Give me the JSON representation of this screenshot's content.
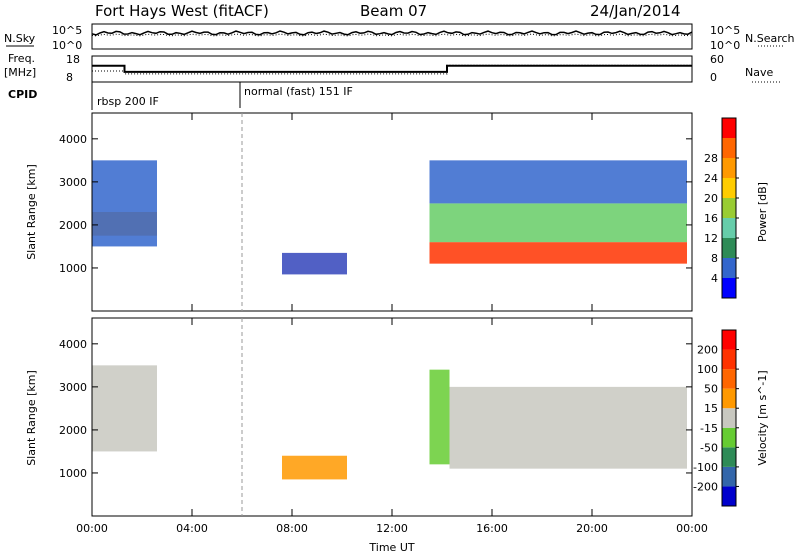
{
  "header": {
    "title": "Fort Hays West (fitACF)",
    "beam": "Beam 07",
    "date": "24/Jan/2014"
  },
  "strip": {
    "nsky_label": "N.Sky",
    "nsearch_label": "N.Search",
    "freq_label": "Freq.",
    "freq_unit": "[MHz]",
    "nave_label": "Nave",
    "cpid_label": "CPID",
    "nsky_ticks": [
      "10^5",
      "10^0"
    ],
    "nsearch_ticks": [
      "10^5",
      "10^0"
    ],
    "freq_ticks": [
      "18",
      "8"
    ],
    "nave_ticks": [
      "60",
      "0"
    ],
    "cpid_segments": [
      {
        "start_h": 0,
        "end_h": 6,
        "label": "rbsp 200 IF"
      },
      {
        "start_h": 6,
        "end_h": 24,
        "label": "normal (fast) 151 IF"
      }
    ],
    "freq_series": [
      [
        0,
        14.5
      ],
      [
        1.3,
        14.5
      ],
      [
        1.3,
        11.2
      ],
      [
        14.2,
        11.2
      ],
      [
        14.2,
        14.5
      ],
      [
        24,
        14.5
      ]
    ],
    "nave_series": [
      [
        0,
        22
      ],
      [
        1.3,
        22
      ],
      [
        1.3,
        13
      ],
      [
        14.2,
        13
      ],
      [
        14.2,
        40
      ],
      [
        24,
        40
      ]
    ]
  },
  "chart_data": [
    {
      "type": "heatmap",
      "name": "power-panel",
      "ylabel": "Slant Range [km]",
      "xlabel": "",
      "x_ticks": [
        "00:00",
        "04:00",
        "08:00",
        "12:00",
        "16:00",
        "20:00",
        "00:00"
      ],
      "y_ticks": [
        1000,
        2000,
        3000,
        4000
      ],
      "ylim": [
        0,
        4600
      ],
      "xlim_hours": [
        0,
        24
      ],
      "colorbar": {
        "label": "Power [dB]",
        "ticks": [
          "4",
          "8",
          "12",
          "16",
          "20",
          "24",
          "28"
        ],
        "colors": [
          "#0000ff",
          "#3366cc",
          "#2e8b57",
          "#66cdaa",
          "#99cc33",
          "#ffcc00",
          "#ff9900",
          "#ff6600",
          "#ff0000"
        ]
      },
      "regions": [
        {
          "x0": 0.0,
          "x1": 2.6,
          "y0": 1750,
          "y1": 2300,
          "color": "#ff9900"
        },
        {
          "x0": 0.0,
          "x1": 2.6,
          "y0": 1500,
          "y1": 3500,
          "color": "#3366cc"
        },
        {
          "x0": 7.6,
          "x1": 10.2,
          "y0": 850,
          "y1": 1350,
          "color": "#3344bb"
        },
        {
          "x0": 13.5,
          "x1": 23.8,
          "y0": 1100,
          "y1": 1600,
          "color": "#ff3300"
        },
        {
          "x0": 13.5,
          "x1": 23.8,
          "y0": 1600,
          "y1": 2500,
          "color": "#66cc66"
        },
        {
          "x0": 13.5,
          "x1": 23.8,
          "y0": 2500,
          "y1": 3500,
          "color": "#3366cc"
        }
      ]
    },
    {
      "type": "heatmap",
      "name": "velocity-panel",
      "ylabel": "Slant Range [km]",
      "xlabel": "Time UT",
      "x_ticks": [
        "00:00",
        "04:00",
        "08:00",
        "12:00",
        "16:00",
        "20:00",
        "00:00"
      ],
      "y_ticks": [
        1000,
        2000,
        3000,
        4000
      ],
      "ylim": [
        0,
        4600
      ],
      "xlim_hours": [
        0,
        24
      ],
      "colorbar": {
        "label": "Velocity [m s^-1]",
        "ticks": [
          "200",
          "100",
          "50",
          "15",
          "-15",
          "-50",
          "-100",
          "-200"
        ],
        "colors": [
          "#0000cc",
          "#3366aa",
          "#2e8b57",
          "#66cc33",
          "#c8c8c0",
          "#ff9900",
          "#ff6600",
          "#ff3300",
          "#ff0000"
        ]
      },
      "regions": [
        {
          "x0": 0.0,
          "x1": 2.6,
          "y0": 1500,
          "y1": 3500,
          "color": "#c8c8c0"
        },
        {
          "x0": 7.6,
          "x1": 10.2,
          "y0": 850,
          "y1": 1400,
          "color": "#ff9900"
        },
        {
          "x0": 13.5,
          "x1": 14.3,
          "y0": 1200,
          "y1": 3400,
          "color": "#66cc33"
        },
        {
          "x0": 14.3,
          "x1": 23.8,
          "y0": 1100,
          "y1": 3000,
          "color": "#c8c8c0"
        }
      ]
    }
  ]
}
